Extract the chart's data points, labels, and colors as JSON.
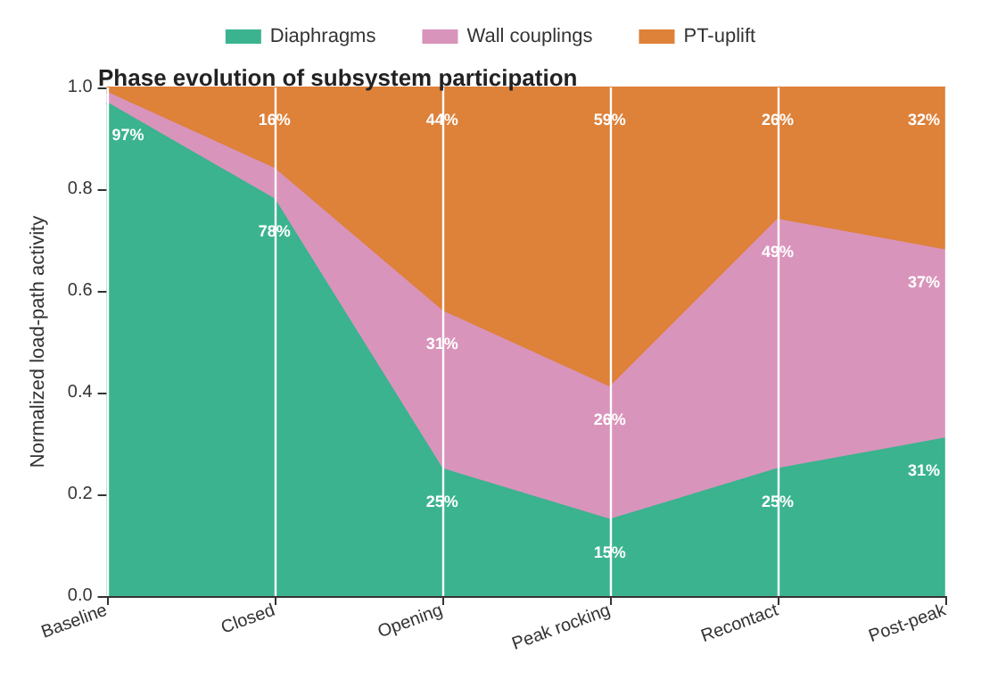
{
  "chart_data": {
    "type": "area",
    "stacked": true,
    "title": "Phase evolution of subsystem participation",
    "ylabel": "Normalized load-path activity",
    "categories": [
      "Baseline",
      "Closed",
      "Opening",
      "Peak rocking",
      "Recontact",
      "Post-peak"
    ],
    "series": [
      {
        "name": "Diaphragms",
        "color": "#3bb38f",
        "values": [
          0.97,
          0.78,
          0.25,
          0.15,
          0.25,
          0.31
        ],
        "value_labels": [
          "97%",
          "78%",
          "25%",
          "15%",
          "25%",
          "31%"
        ]
      },
      {
        "name": "Wall couplings",
        "color": "#d994bb",
        "values": [
          0.02,
          0.06,
          0.31,
          0.26,
          0.49,
          0.37
        ],
        "value_labels": [
          null,
          null,
          "31%",
          "26%",
          "49%",
          "37%"
        ]
      },
      {
        "name": "PT-uplift",
        "color": "#de8139",
        "values": [
          0.01,
          0.16,
          0.44,
          0.59,
          0.26,
          0.32
        ],
        "value_labels": [
          null,
          "16%",
          "44%",
          "59%",
          "26%",
          "32%"
        ]
      }
    ],
    "ylim": [
      0,
      1
    ],
    "yticks": [
      {
        "value": 0,
        "label": "0.0"
      },
      0.2,
      0.4,
      0.6,
      0.8,
      {
        "value": 1,
        "label": "1.0"
      }
    ],
    "grid": "x",
    "legend": "top"
  }
}
